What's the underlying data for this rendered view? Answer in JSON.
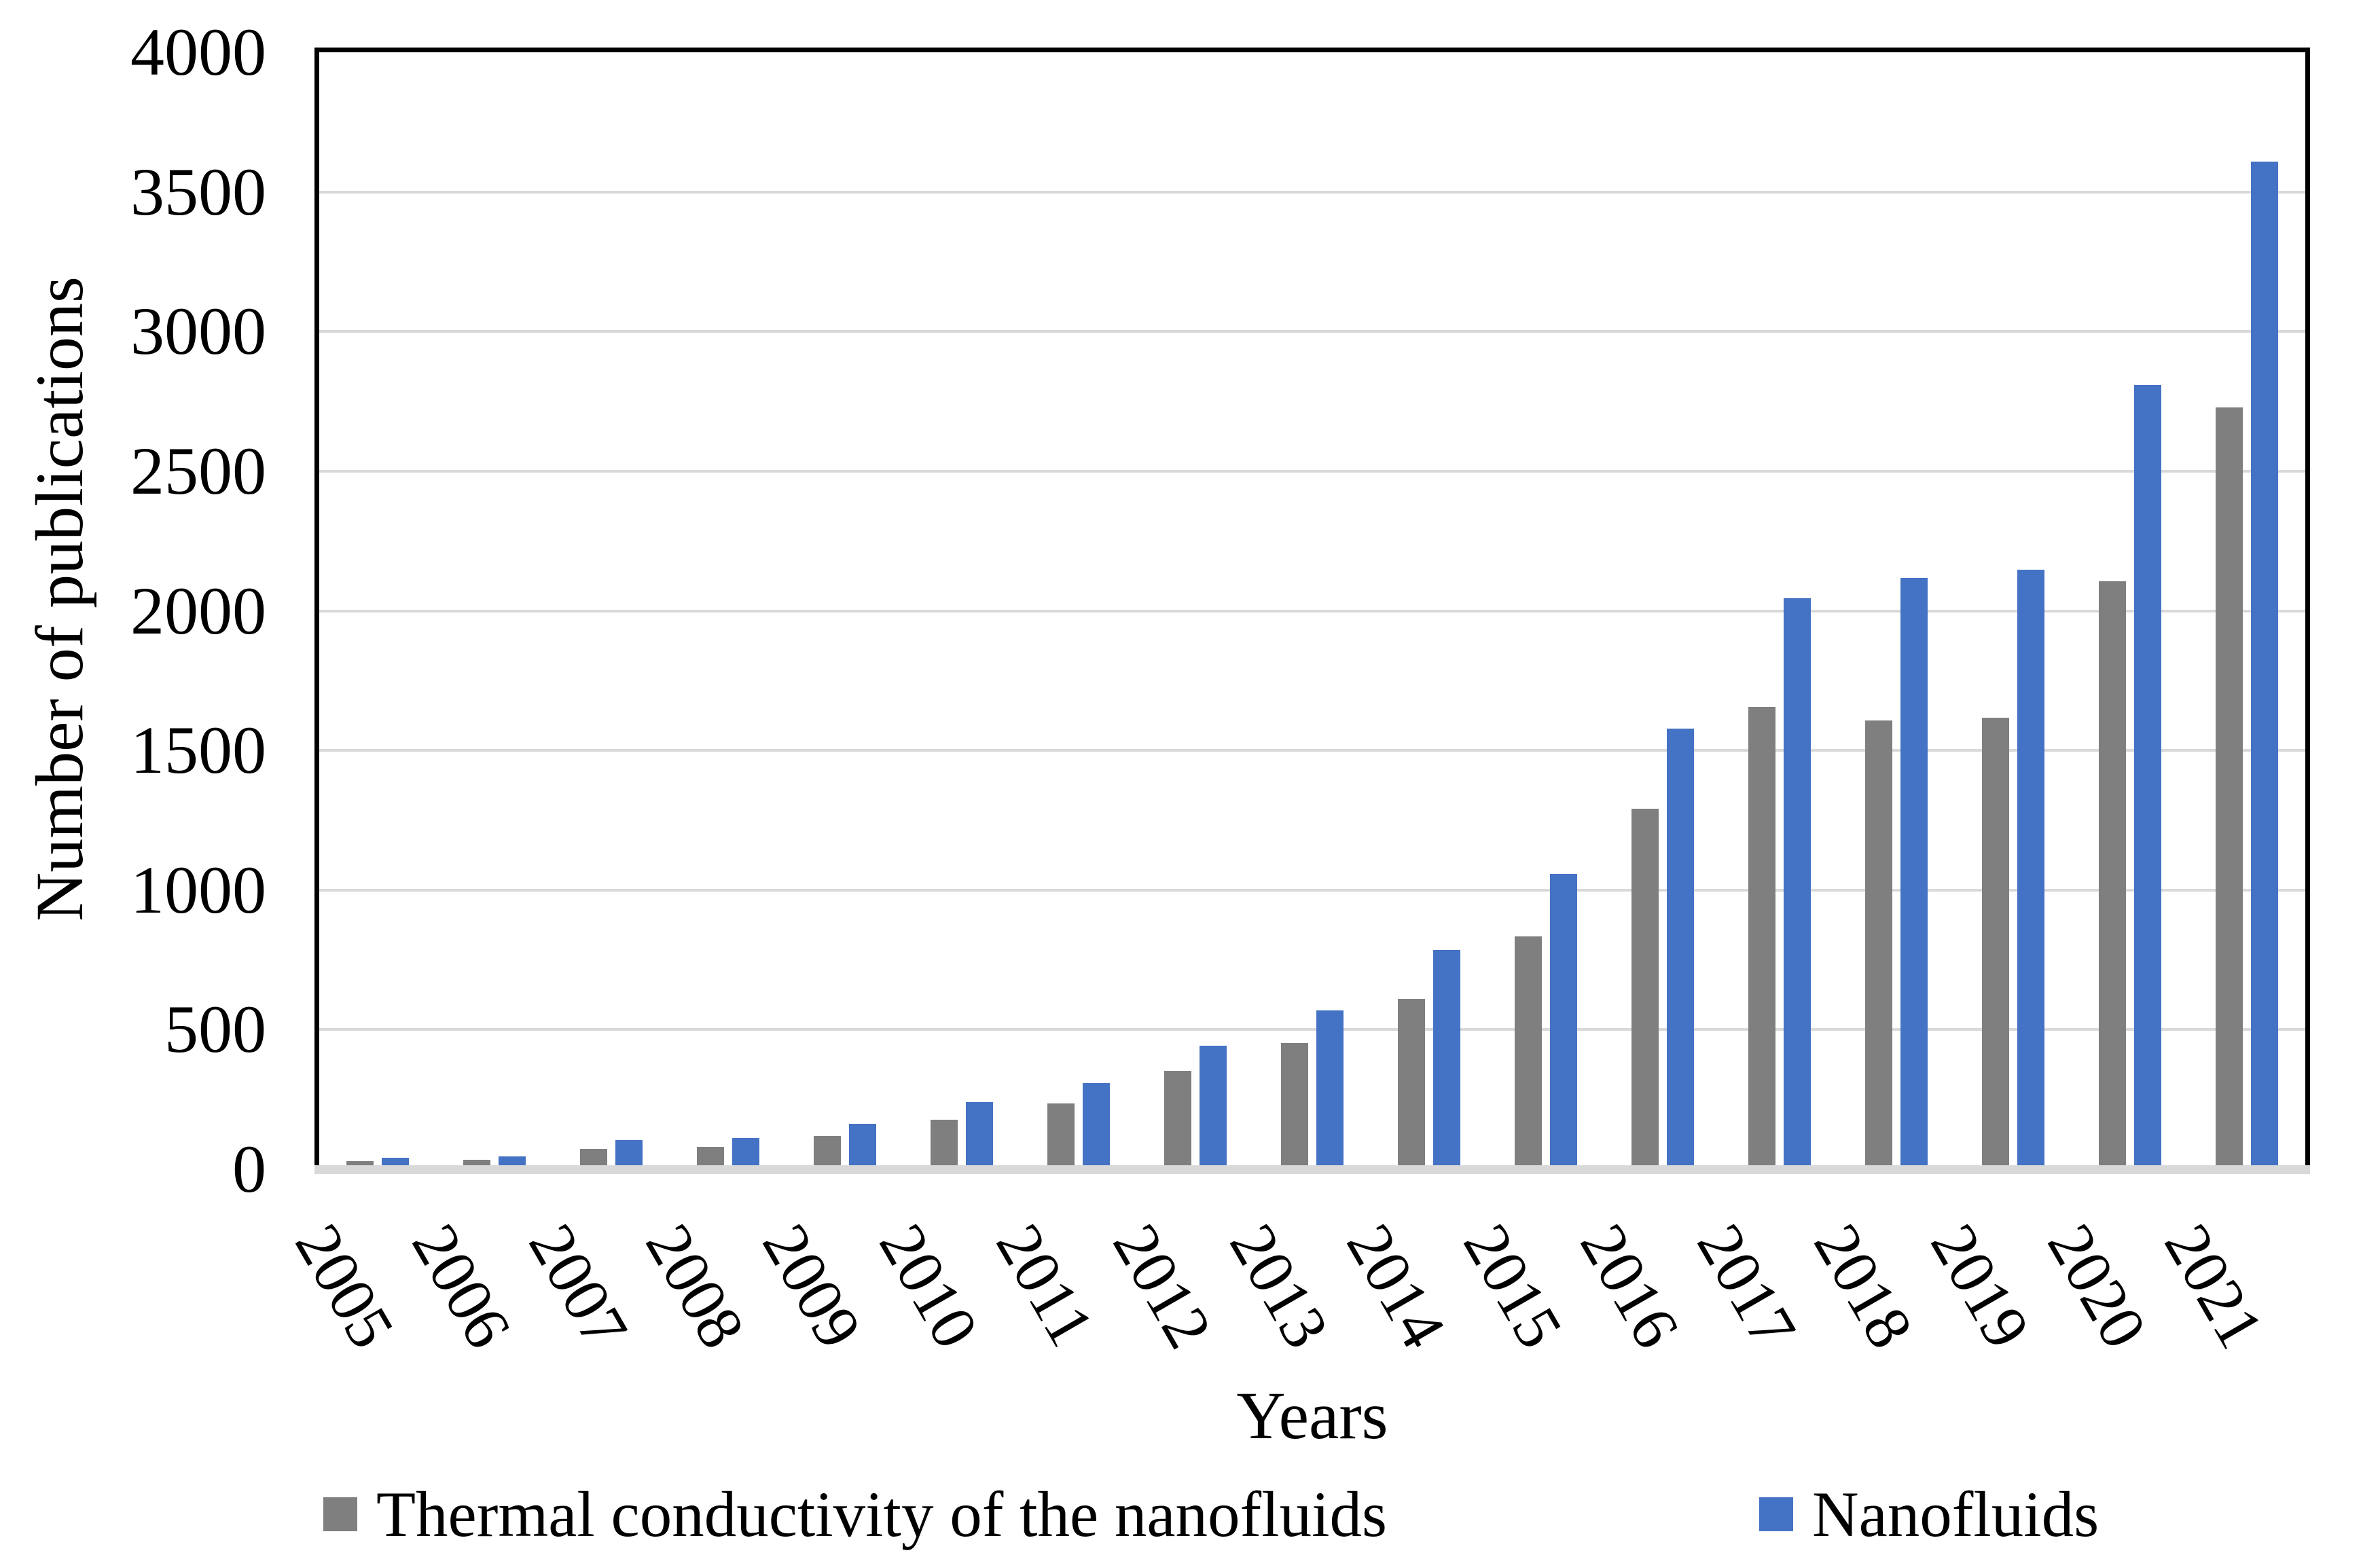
{
  "chart_data": {
    "type": "bar",
    "title": "",
    "xlabel": "Years",
    "ylabel": "Number of publications",
    "categories": [
      "2005",
      "2006",
      "2007",
      "2008",
      "2009",
      "2010",
      "2011",
      "2012",
      "2013",
      "2014",
      "2015",
      "2016",
      "2017",
      "2018",
      "2019",
      "2020",
      "2021"
    ],
    "series": [
      {
        "name": "Thermal conductivity of the nanofluids",
        "color": "#7F7F7F",
        "values": [
          30,
          35,
          73,
          80,
          120,
          178,
          237,
          352,
          452,
          610,
          833,
          1290,
          1657,
          1608,
          1617,
          2105,
          2728
        ]
      },
      {
        "name": "Nanofluids",
        "color": "#4472C4",
        "values": [
          42,
          47,
          105,
          112,
          162,
          240,
          308,
          443,
          568,
          786,
          1058,
          1578,
          2046,
          2118,
          2148,
          2808,
          3608
        ]
      }
    ],
    "ylim": [
      0,
      4000
    ],
    "ytick_step": 500,
    "yticks": [
      "0",
      "500",
      "1000",
      "1500",
      "2000",
      "2500",
      "3000",
      "3500",
      "4000"
    ],
    "grid": true,
    "gridline_color": "#D9D9D9",
    "axis_line_color": "#D9D9D9",
    "frame_color": "#000000",
    "legend_position": "bottom"
  }
}
